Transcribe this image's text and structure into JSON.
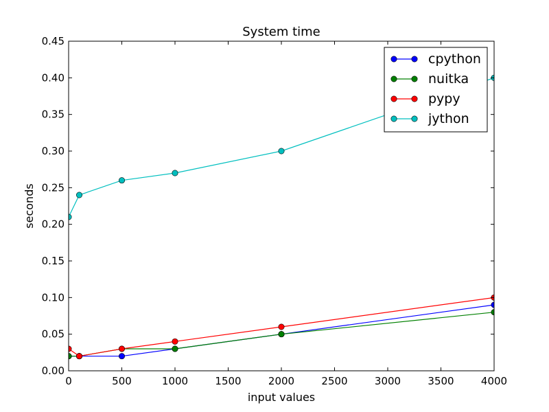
{
  "chart_data": {
    "type": "line",
    "title": "System time",
    "xlabel": "input values",
    "ylabel": "seconds",
    "xlim": [
      0,
      4000
    ],
    "ylim": [
      0,
      0.45
    ],
    "xticks": [
      0,
      500,
      1000,
      1500,
      2000,
      2500,
      3000,
      3500,
      4000
    ],
    "xtick_labels": [
      "0",
      "500",
      "1000",
      "1500",
      "2000",
      "2500",
      "3000",
      "3500",
      "4000"
    ],
    "yticks": [
      0,
      0.05,
      0.1,
      0.15,
      0.2,
      0.25,
      0.3,
      0.35,
      0.4,
      0.45
    ],
    "ytick_labels": [
      "0.00",
      "0.05",
      "0.10",
      "0.15",
      "0.20",
      "0.25",
      "0.30",
      "0.35",
      "0.40",
      "0.45"
    ],
    "grid": false,
    "legend_position": "top-right",
    "x": [
      0,
      100,
      500,
      1000,
      2000,
      4000
    ],
    "series": [
      {
        "name": "cpython",
        "color": "#0000ff",
        "values": [
          0.02,
          0.02,
          0.02,
          0.03,
          0.05,
          0.09
        ]
      },
      {
        "name": "nuitka",
        "color": "#008000",
        "values": [
          0.02,
          0.02,
          0.03,
          0.03,
          0.05,
          0.08
        ]
      },
      {
        "name": "pypy",
        "color": "#ff0000",
        "values": [
          0.03,
          0.02,
          0.03,
          0.04,
          0.06,
          0.1
        ]
      },
      {
        "name": "jython",
        "color": "#00bfbf",
        "values": [
          0.21,
          0.24,
          0.26,
          0.27,
          0.3,
          0.4
        ]
      }
    ]
  }
}
